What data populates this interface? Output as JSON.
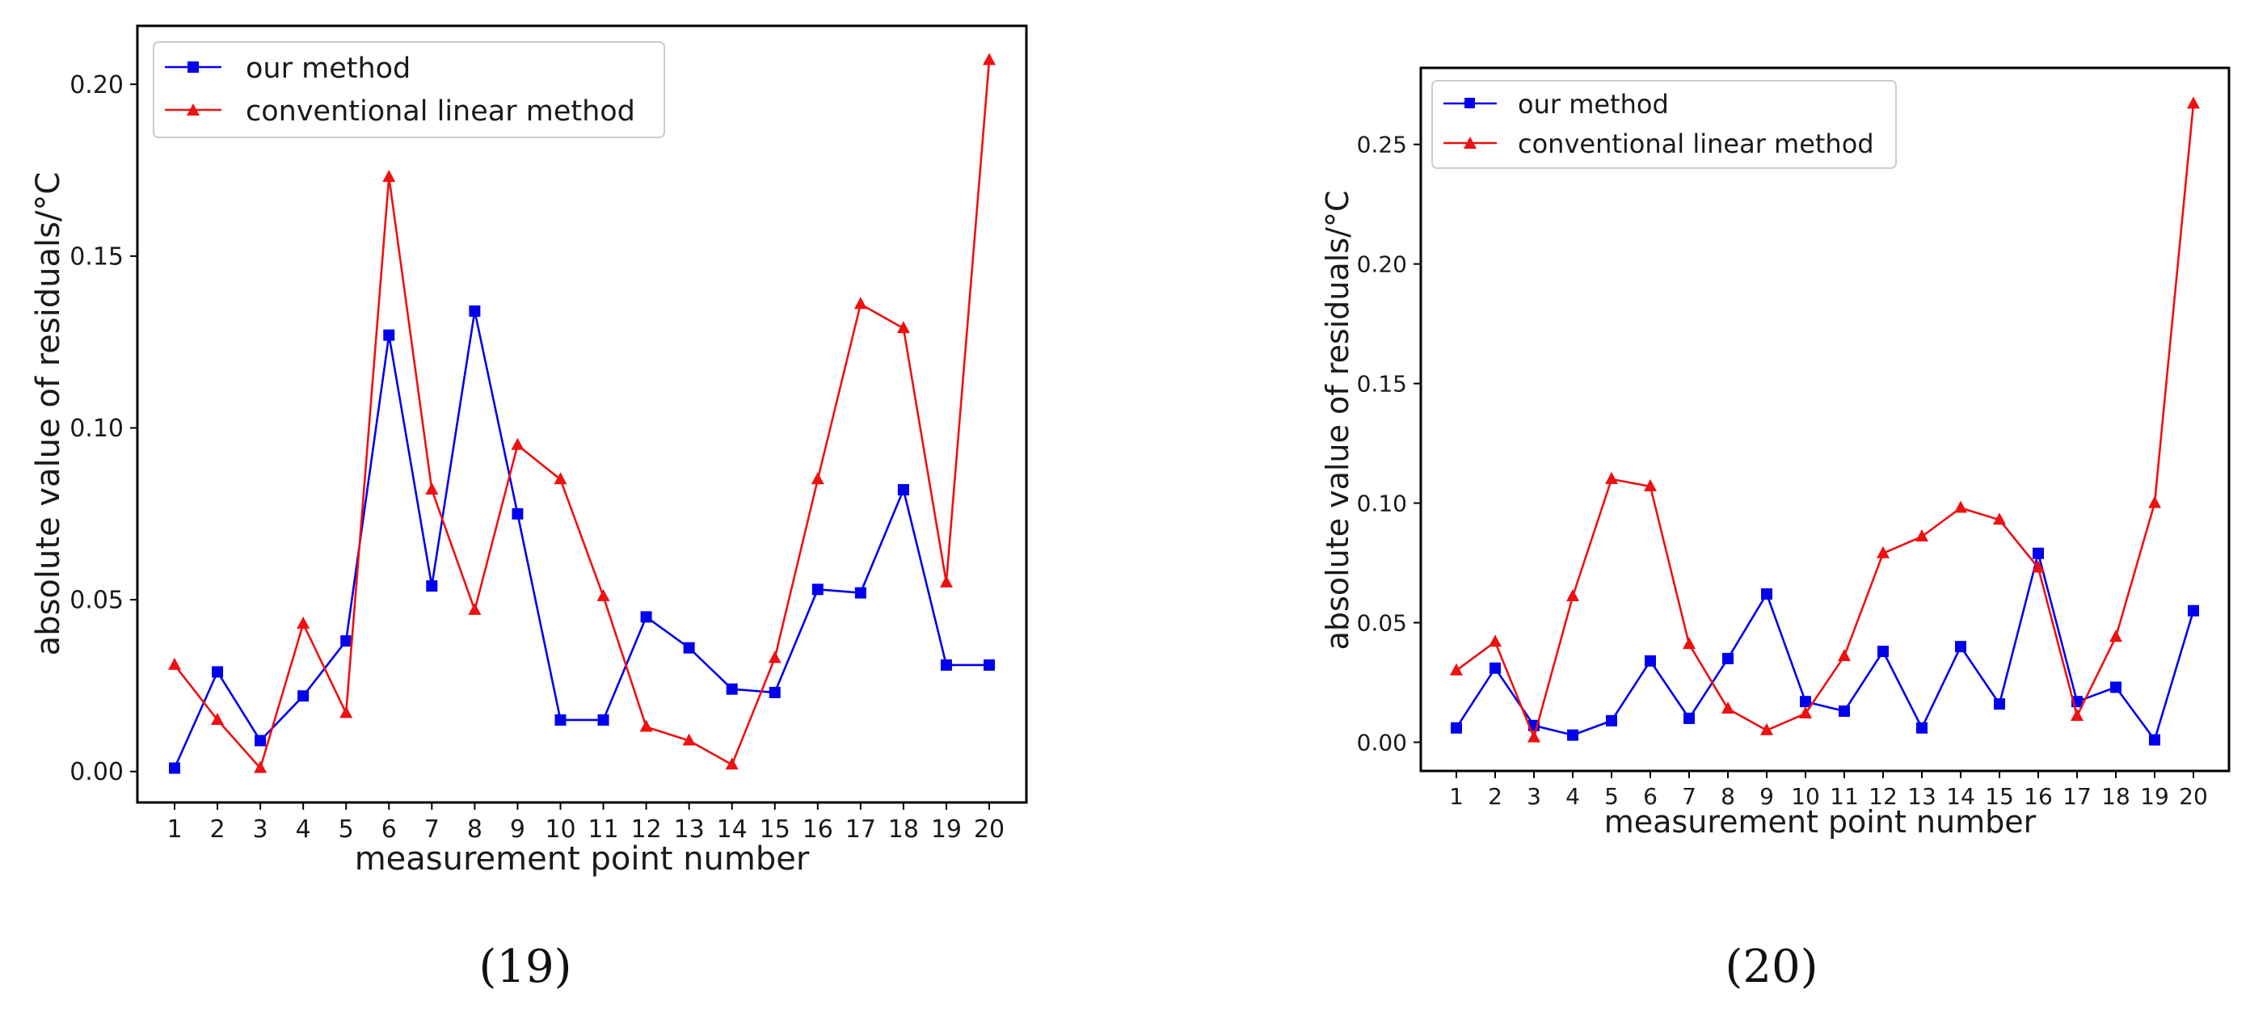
{
  "chart_data": [
    {
      "type": "line",
      "caption": "(19)",
      "xlabel": "measurement point number",
      "ylabel": "absolute value of residuals/°C",
      "categories": [
        "1",
        "2",
        "3",
        "4",
        "5",
        "6",
        "7",
        "8",
        "9",
        "10",
        "11",
        "12",
        "13",
        "14",
        "15",
        "16",
        "17",
        "18",
        "19",
        "20"
      ],
      "ylim": [
        -0.009,
        0.217
      ],
      "yticks": [
        0.0,
        0.05,
        0.1,
        0.15,
        0.2
      ],
      "ytick_labels": [
        "0.00",
        "0.05",
        "0.10",
        "0.15",
        "0.20"
      ],
      "legend_position": "top-left",
      "series": [
        {
          "name": "our method",
          "color": "#0000ee",
          "marker": "square",
          "values": [
            0.001,
            0.029,
            0.009,
            0.022,
            0.038,
            0.127,
            0.054,
            0.134,
            0.075,
            0.015,
            0.015,
            0.045,
            0.036,
            0.024,
            0.023,
            0.053,
            0.052,
            0.082,
            0.031,
            0.031
          ]
        },
        {
          "name": "conventional linear method",
          "color": "#ee1111",
          "marker": "triangle",
          "values": [
            0.031,
            0.015,
            0.001,
            0.043,
            0.017,
            0.173,
            0.082,
            0.047,
            0.095,
            0.085,
            0.051,
            0.013,
            0.009,
            0.002,
            0.033,
            0.085,
            0.136,
            0.129,
            0.055,
            0.207
          ]
        }
      ]
    },
    {
      "type": "line",
      "caption": "(20)",
      "xlabel": "measurement point number",
      "ylabel": "absolute value of residuals/°C",
      "categories": [
        "1",
        "2",
        "3",
        "4",
        "5",
        "6",
        "7",
        "8",
        "9",
        "10",
        "11",
        "12",
        "13",
        "14",
        "15",
        "16",
        "17",
        "18",
        "19",
        "20"
      ],
      "ylim": [
        -0.012,
        0.282
      ],
      "yticks": [
        0.0,
        0.05,
        0.1,
        0.15,
        0.2,
        0.25
      ],
      "ytick_labels": [
        "0.00",
        "0.05",
        "0.10",
        "0.15",
        "0.20",
        "0.25"
      ],
      "legend_position": "top-left",
      "series": [
        {
          "name": "our method",
          "color": "#0000ee",
          "marker": "square",
          "values": [
            0.006,
            0.031,
            0.007,
            0.003,
            0.009,
            0.034,
            0.01,
            0.035,
            0.062,
            0.017,
            0.013,
            0.038,
            0.006,
            0.04,
            0.016,
            0.079,
            0.017,
            0.023,
            0.001,
            0.055
          ]
        },
        {
          "name": "conventional linear method",
          "color": "#ee1111",
          "marker": "triangle",
          "values": [
            0.03,
            0.042,
            0.002,
            0.061,
            0.11,
            0.107,
            0.041,
            0.014,
            0.005,
            0.012,
            0.036,
            0.079,
            0.086,
            0.098,
            0.093,
            0.073,
            0.011,
            0.044,
            0.1,
            0.267
          ]
        }
      ]
    }
  ]
}
